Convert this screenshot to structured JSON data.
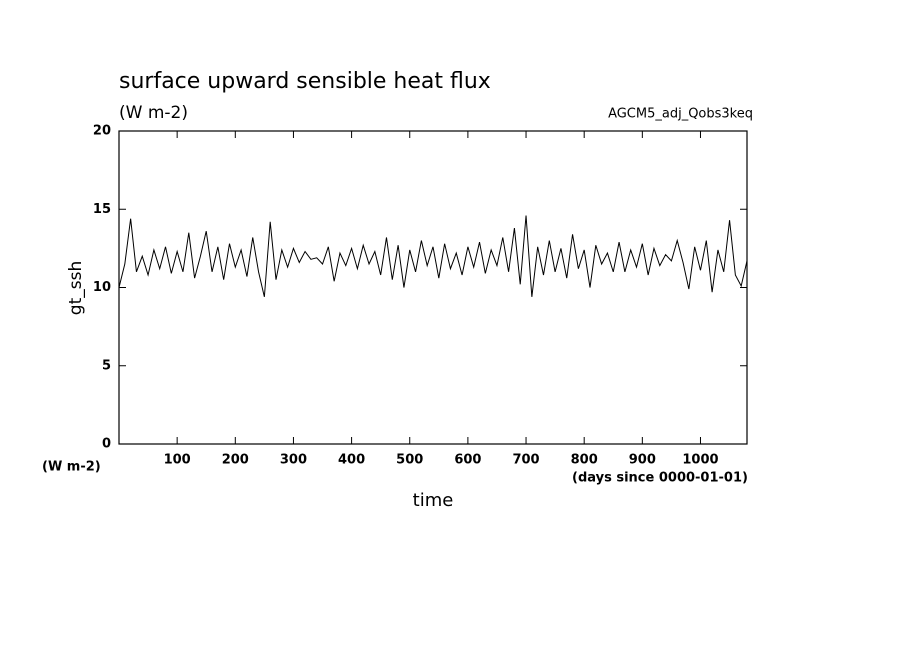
{
  "chart_data": {
    "type": "line",
    "title": "surface upward sensible heat flux",
    "subtitle": "(W m-2)",
    "annotation": "AGCM5_adj_Qobs3keq",
    "ylabel": "gt_ssh",
    "yunit": "(W m-2)",
    "xlabel": "time",
    "xunit": "(days since 0000-01-01)",
    "xlim": [
      0,
      1080
    ],
    "ylim": [
      0,
      20
    ],
    "xticks": [
      100,
      200,
      300,
      400,
      500,
      600,
      700,
      800,
      900,
      1000
    ],
    "yticks": [
      0,
      5,
      10,
      15,
      20
    ],
    "x": [
      0,
      10,
      20,
      30,
      40,
      50,
      60,
      70,
      80,
      90,
      100,
      110,
      120,
      130,
      140,
      150,
      160,
      170,
      180,
      190,
      200,
      210,
      220,
      230,
      240,
      250,
      260,
      270,
      280,
      290,
      300,
      310,
      320,
      330,
      340,
      350,
      360,
      370,
      380,
      390,
      400,
      410,
      420,
      430,
      440,
      450,
      460,
      470,
      480,
      490,
      500,
      510,
      520,
      530,
      540,
      550,
      560,
      570,
      580,
      590,
      600,
      610,
      620,
      630,
      640,
      650,
      660,
      670,
      680,
      690,
      700,
      710,
      720,
      730,
      740,
      750,
      760,
      770,
      780,
      790,
      800,
      810,
      820,
      830,
      840,
      850,
      860,
      870,
      880,
      890,
      900,
      910,
      920,
      930,
      940,
      950,
      960,
      970,
      980,
      990,
      1000,
      1010,
      1020,
      1030,
      1040,
      1050,
      1060,
      1070,
      1080
    ],
    "series": [
      {
        "color": "#000000",
        "values": [
          10.0,
          11.5,
          14.4,
          11.0,
          12.0,
          10.8,
          12.4,
          11.2,
          12.6,
          10.9,
          12.3,
          11.0,
          13.5,
          10.6,
          12.0,
          13.6,
          11.0,
          12.6,
          10.5,
          12.8,
          11.3,
          12.4,
          10.7,
          13.2,
          11.0,
          9.4,
          14.2,
          10.5,
          12.4,
          11.3,
          12.5,
          11.6,
          12.3,
          11.8,
          11.9,
          11.5,
          12.6,
          10.4,
          12.2,
          11.4,
          12.5,
          11.2,
          12.7,
          11.5,
          12.3,
          10.8,
          13.2,
          10.5,
          12.7,
          10.0,
          12.4,
          11.0,
          13.0,
          11.4,
          12.6,
          10.6,
          12.8,
          11.2,
          12.2,
          10.8,
          12.6,
          11.3,
          12.9,
          10.9,
          12.4,
          11.4,
          13.2,
          11.0,
          13.8,
          10.2,
          14.6,
          9.4,
          12.6,
          10.8,
          13.0,
          11.0,
          12.5,
          10.6,
          13.4,
          11.2,
          12.4,
          10.0,
          12.7,
          11.5,
          12.2,
          11.0,
          12.9,
          11.0,
          12.4,
          11.3,
          12.8,
          10.8,
          12.5,
          11.4,
          12.1,
          11.7,
          13.0,
          11.6,
          9.9,
          12.6,
          11.1,
          13.0,
          9.7,
          12.4,
          11.0,
          14.3,
          10.8,
          10.1,
          11.7
        ]
      }
    ]
  }
}
